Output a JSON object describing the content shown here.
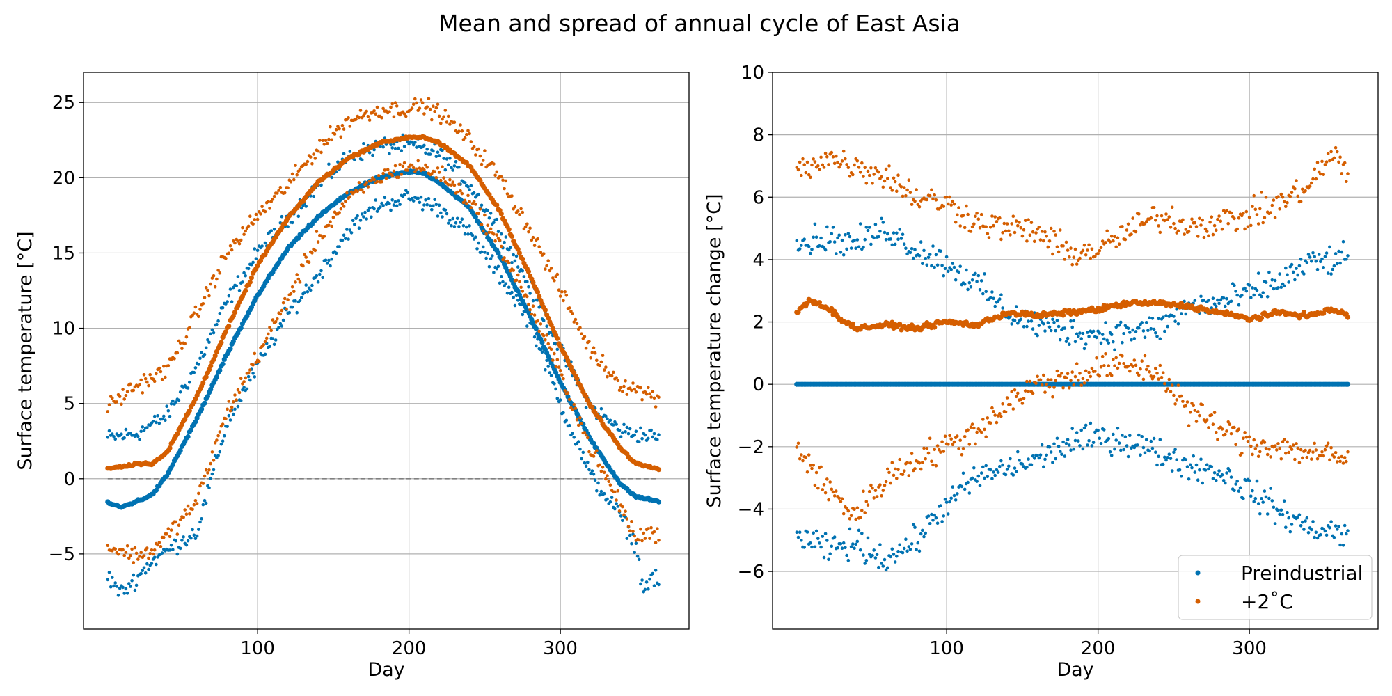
{
  "figure": {
    "title": "Mean and spread of annual cycle of East Asia"
  },
  "colors": {
    "preindustrial": "#0072b2",
    "plus2c": "#d55e00",
    "grid": "#b0b0b0",
    "zero_line": "#808080"
  },
  "chart_data": [
    {
      "type": "scatter",
      "title": "",
      "xlabel": "Day",
      "ylabel": "Surface temperature [°C]",
      "xlim": [
        -15,
        385
      ],
      "ylim": [
        -10,
        27
      ],
      "xticks": [
        100,
        200,
        300
      ],
      "yticks": [
        -5,
        0,
        5,
        10,
        15,
        20,
        25
      ],
      "ytick_labels": [
        "−5",
        "0",
        "5",
        "10",
        "15",
        "20",
        "25"
      ],
      "grid": true,
      "zero_reference_line": true,
      "series": [
        {
          "name": "Preindustrial",
          "color": "#0072b2",
          "model": "absolute",
          "mean": {
            "x": [
              1,
              10,
              20,
              30,
              40,
              60,
              80,
              100,
              120,
              140,
              160,
              180,
              200,
              210,
              220,
              240,
              260,
              280,
              300,
              320,
              340,
              350,
              360,
              365
            ],
            "y": [
              -1.6,
              -1.9,
              -1.5,
              -1.1,
              0.2,
              4.0,
              8.3,
              12.2,
              15.3,
              17.4,
              19.0,
              20.0,
              20.4,
              20.3,
              19.7,
              18.0,
              14.8,
              10.8,
              6.4,
              2.6,
              -0.4,
              -1.2,
              -1.4,
              -1.5
            ]
          },
          "upper": {
            "x": [
              1,
              20,
              40,
              60,
              80,
              100,
              120,
              140,
              160,
              180,
              200,
              220,
              240,
              260,
              280,
              300,
              320,
              340,
              365
            ],
            "y": [
              2.7,
              3.0,
              4.2,
              7.5,
              11.8,
              15.0,
              17.3,
              19.5,
              21.4,
              22.1,
              22.2,
              21.6,
              19.5,
              16.5,
              12.7,
              8.5,
              4.8,
              3.2,
              2.7
            ]
          },
          "lower": {
            "x": [
              1,
              10,
              20,
              30,
              40,
              60,
              80,
              100,
              120,
              140,
              160,
              180,
              200,
              220,
              240,
              260,
              280,
              300,
              320,
              340,
              350,
              355,
              360,
              365
            ],
            "y": [
              -6.5,
              -7.6,
              -6.6,
              -5.5,
              -4.8,
              -3.5,
              3.8,
              7.5,
              11.0,
              13.5,
              16.5,
              18.2,
              18.7,
              18.0,
              16.3,
              13.5,
              10.5,
              5.0,
              0.2,
              -2.5,
              -4.5,
              -7.5,
              -6.5,
              -7.0
            ]
          }
        },
        {
          "name": "+2°C",
          "color": "#d55e00",
          "model": "absolute",
          "mean": {
            "x": [
              1,
              10,
              20,
              30,
              40,
              60,
              80,
              100,
              120,
              140,
              160,
              180,
              200,
              210,
              220,
              240,
              260,
              280,
              300,
              320,
              340,
              350,
              360,
              365
            ],
            "y": [
              0.7,
              0.8,
              1.0,
              1.0,
              1.7,
              5.5,
              10.0,
              14.2,
              17.3,
              19.7,
              21.3,
              22.3,
              22.7,
              22.7,
              22.3,
              20.8,
              17.8,
              13.5,
              8.8,
              4.8,
              2.0,
              1.0,
              0.8,
              0.7
            ]
          },
          "upper": {
            "x": [
              1,
              20,
              40,
              60,
              80,
              100,
              120,
              140,
              160,
              180,
              200,
              210,
              220,
              240,
              260,
              280,
              300,
              320,
              340,
              365
            ],
            "y": [
              4.8,
              6.2,
              7.2,
              11.0,
              15.0,
              17.5,
              19.5,
              22.0,
              23.8,
              24.5,
              24.6,
              24.8,
              24.3,
              22.5,
              20.0,
              16.5,
              12.5,
              8.5,
              6.3,
              5.4
            ]
          },
          "lower": {
            "x": [
              1,
              10,
              20,
              30,
              40,
              60,
              80,
              100,
              120,
              140,
              160,
              180,
              200,
              220,
              240,
              260,
              280,
              300,
              320,
              340,
              350,
              360,
              365
            ],
            "y": [
              -4.5,
              -4.8,
              -5.1,
              -4.8,
              -3.8,
              -1.5,
              4.5,
              8.2,
              12.0,
              16.0,
              18.6,
              20.0,
              20.8,
              20.3,
              18.5,
              15.5,
              11.5,
              7.0,
              2.0,
              -1.8,
              -4.0,
              -3.5,
              -3.8
            ]
          }
        }
      ]
    },
    {
      "type": "scatter",
      "title": "",
      "xlabel": "Day",
      "ylabel": "Surface temperature change [°C]",
      "xlim": [
        -15,
        385
      ],
      "ylim": [
        -7.85,
        10
      ],
      "xticks": [
        100,
        200,
        300
      ],
      "yticks": [
        -6,
        -4,
        -2,
        0,
        2,
        4,
        6,
        8,
        10
      ],
      "ytick_labels": [
        "−6",
        "−4",
        "−2",
        "0",
        "2",
        "4",
        "6",
        "8",
        "10"
      ],
      "grid": true,
      "legend_position": "lower-right",
      "legend_labels": [
        "Preindustrial",
        "+2˚C"
      ],
      "series": [
        {
          "name": "Preindustrial",
          "color": "#0072b2",
          "model": "change",
          "mean": {
            "x": [
              1,
              365
            ],
            "y": [
              0,
              0
            ]
          },
          "upper": {
            "x": [
              1,
              20,
              40,
              60,
              80,
              100,
              120,
              140,
              160,
              180,
              200,
              220,
              240,
              260,
              280,
              300,
              320,
              340,
              365
            ],
            "y": [
              4.5,
              4.7,
              4.5,
              5.0,
              4.3,
              3.9,
              3.2,
              2.3,
              1.9,
              1.7,
              1.6,
              1.7,
              1.8,
              2.5,
              2.6,
              2.9,
              3.3,
              3.9,
              4.0
            ]
          },
          "lower": {
            "x": [
              1,
              20,
              40,
              60,
              80,
              100,
              120,
              140,
              160,
              180,
              200,
              220,
              240,
              260,
              280,
              300,
              320,
              340,
              365
            ],
            "y": [
              -4.8,
              -5.3,
              -5.1,
              -5.6,
              -5.0,
              -3.8,
              -3.0,
              -2.7,
              -2.4,
              -1.9,
              -1.7,
              -1.8,
              -2.2,
              -2.6,
              -2.8,
              -3.4,
              -4.1,
              -4.6,
              -4.8
            ]
          }
        },
        {
          "name": "+2˚C",
          "color": "#d55e00",
          "model": "change",
          "mean": {
            "x": [
              1,
              10,
              20,
              30,
              40,
              60,
              80,
              100,
              120,
              140,
              160,
              180,
              200,
              220,
              240,
              260,
              280,
              300,
              320,
              340,
              355,
              365
            ],
            "y": [
              2.3,
              2.7,
              2.5,
              2.1,
              1.8,
              1.9,
              1.8,
              2.0,
              1.9,
              2.3,
              2.2,
              2.3,
              2.4,
              2.6,
              2.6,
              2.5,
              2.3,
              2.1,
              2.3,
              2.2,
              2.4,
              2.2
            ]
          },
          "upper": {
            "x": [
              1,
              20,
              40,
              60,
              80,
              100,
              120,
              140,
              160,
              180,
              200,
              220,
              240,
              260,
              280,
              300,
              320,
              340,
              355,
              365
            ],
            "y": [
              6.8,
              7.3,
              7.0,
              6.7,
              6.0,
              5.8,
              5.2,
              5.0,
              4.9,
              4.2,
              4.3,
              4.9,
              5.4,
              5.1,
              5.2,
              5.4,
              5.8,
              6.4,
              7.4,
              6.7
            ]
          },
          "lower": {
            "x": [
              1,
              20,
              40,
              60,
              80,
              100,
              120,
              140,
              160,
              180,
              200,
              220,
              240,
              260,
              280,
              300,
              320,
              340,
              365
            ],
            "y": [
              -2.0,
              -3.3,
              -4.2,
              -3.0,
              -2.4,
              -2.0,
              -1.5,
              -0.6,
              0.0,
              0.2,
              0.5,
              0.6,
              0.4,
              -0.8,
              -1.4,
              -1.9,
              -2.0,
              -2.2,
              -2.4
            ]
          }
        }
      ]
    }
  ]
}
